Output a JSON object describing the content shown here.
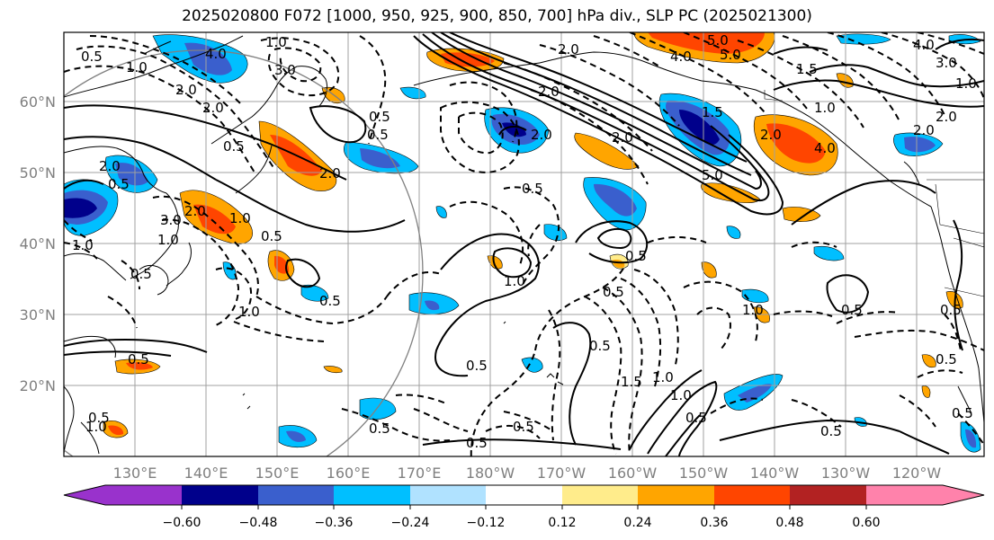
{
  "title": "2025020800 F072 [1000, 950, 925, 900, 850, 700] hPa div., SLP PC (2025021300)",
  "lat_labels": [
    "60°N",
    "50°N",
    "40°N",
    "30°N",
    "20°N"
  ],
  "lon_labels": [
    "130°E",
    "140°E",
    "150°E",
    "160°E",
    "170°E",
    "180°W",
    "170°W",
    "160°W",
    "150°W",
    "140°W",
    "130°W",
    "120°W"
  ],
  "colorbar": {
    "ticks": [
      "−0.60",
      "−0.48",
      "−0.36",
      "−0.24",
      "−0.12",
      "0.12",
      "0.24",
      "0.36",
      "0.48",
      "0.60"
    ],
    "colors": [
      "#9932CC",
      "#00008B",
      "#3A5FCD",
      "#00BFFF",
      "#B0E2FF",
      "#FFFFFF",
      "#FFEC8B",
      "#FFA500",
      "#FF4500",
      "#B22222",
      "#FF82AB"
    ]
  },
  "contour_labels": [
    "1.0",
    "4.0",
    "3.0",
    "2.0",
    "2.0",
    "1.0",
    "0.5",
    "0.5",
    "5.0",
    "4.0",
    "5.0",
    "4.0",
    "3.0",
    "2.0",
    "1.5",
    "1.0",
    "1.0",
    "2.0",
    "2.0",
    "2.0",
    "4.0",
    "2.0",
    "1.5",
    "2.0",
    "2.0",
    "3.0",
    "1.0",
    "2.0",
    "1.0",
    "0.5",
    "0.5",
    "2.0",
    "1.0",
    "0.5",
    "1.0",
    "0.5",
    "0.5",
    "2.0",
    "0.5",
    "5.0",
    "1.0",
    "0.5",
    "0.5",
    "0.5",
    "1.0",
    "0.5",
    "0.5",
    "0.5",
    "0.5",
    "1.5",
    "1.0",
    "1.0",
    "0.5",
    "0.5",
    "0.5",
    "0.5",
    "0.5",
    "0.5",
    "0.5",
    "0.5",
    "0.5",
    "1.0"
  ]
}
